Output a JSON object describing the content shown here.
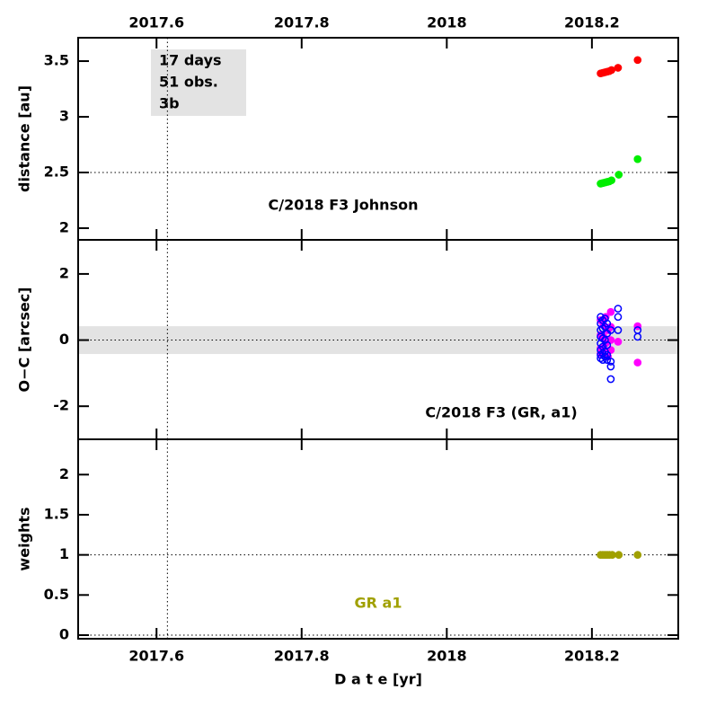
{
  "chart_data": [
    {
      "type": "scatter",
      "ylabel": "distance [au]",
      "label": "C/2018 F3 Johnson",
      "annotations": [
        "17 days",
        "51 obs.",
        "3b"
      ],
      "xlim": [
        2017.492,
        2018.319
      ],
      "xticks": [
        2017.6,
        2017.8,
        2018,
        2018.2
      ],
      "ylim": [
        1.895,
        3.71
      ],
      "yticks": [
        2,
        2.5,
        3,
        3.5
      ],
      "hlines": [
        2.5
      ],
      "vlines": [
        2017.615
      ],
      "series": [
        {
          "color": "#ff0000",
          "marker": "filled",
          "x": [
            2018.212,
            2018.215,
            2018.218,
            2018.221,
            2018.224,
            2018.227,
            2018.236,
            2018.263
          ],
          "values": [
            3.39,
            3.395,
            3.4,
            3.405,
            3.41,
            3.42,
            3.44,
            3.51
          ]
        },
        {
          "color": "#00ee00",
          "marker": "filled",
          "x": [
            2018.212,
            2018.215,
            2018.218,
            2018.221,
            2018.224,
            2018.227,
            2018.237,
            2018.263
          ],
          "values": [
            2.4,
            2.405,
            2.41,
            2.415,
            2.42,
            2.43,
            2.48,
            2.62
          ]
        }
      ]
    },
    {
      "type": "scatter",
      "ylabel": "O−C [arcsec]",
      "label": "C/2018 F3 (GR, a1)",
      "xlim": [
        2017.492,
        2018.319
      ],
      "xticks": [
        2017.6,
        2017.8,
        2018,
        2018.2
      ],
      "ylim": [
        -3,
        3.03
      ],
      "yticks": [
        -2,
        0,
        2
      ],
      "band": [
        -0.42,
        0.42
      ],
      "hlines": [
        0
      ],
      "vlines": [
        2017.615
      ],
      "series": [
        {
          "color": "#ff00ff",
          "marker": "filled",
          "x": [
            2018.212,
            2018.212,
            2018.212,
            2018.212,
            2018.216,
            2018.216,
            2018.216,
            2018.219,
            2018.219,
            2018.222,
            2018.222,
            2018.226,
            2018.226,
            2018.226,
            2018.226,
            2018.236,
            2018.263,
            2018.263
          ],
          "values": [
            0.6,
            0.15,
            -0.25,
            -0.4,
            0.45,
            0.1,
            -0.3,
            0.7,
            -0.1,
            0.3,
            -0.5,
            0.85,
            0.4,
            0.0,
            -0.3,
            -0.05,
            0.42,
            -0.68
          ]
        },
        {
          "color": "#0000ff",
          "marker": "open",
          "x": [
            2018.212,
            2018.212,
            2018.212,
            2018.212,
            2018.212,
            2018.212,
            2018.212,
            2018.212,
            2018.215,
            2018.215,
            2018.215,
            2018.215,
            2018.215,
            2018.215,
            2018.218,
            2018.218,
            2018.218,
            2018.218,
            2018.218,
            2018.221,
            2018.221,
            2018.221,
            2018.221,
            2018.221,
            2018.226,
            2018.226,
            2018.226,
            2018.226,
            2018.236,
            2018.236,
            2018.236,
            2018.263,
            2018.263
          ],
          "values": [
            0.7,
            0.5,
            0.3,
            0.1,
            -0.1,
            -0.3,
            -0.45,
            -0.55,
            0.6,
            0.35,
            0.05,
            -0.2,
            -0.4,
            -0.6,
            0.65,
            0.4,
            0.0,
            -0.35,
            -0.5,
            0.5,
            0.2,
            -0.15,
            -0.45,
            -0.6,
            0.3,
            -0.65,
            -0.8,
            -1.18,
            0.95,
            0.7,
            0.3,
            0.3,
            0.1
          ]
        }
      ]
    },
    {
      "type": "scatter",
      "ylabel": "weights",
      "label": "GR a1",
      "label_color": "#a0a000",
      "xlabel": "D a t e [yr]",
      "xlim": [
        2017.492,
        2018.319
      ],
      "xticks": [
        2017.6,
        2017.8,
        2018,
        2018.2
      ],
      "ylim": [
        -0.045,
        2.44
      ],
      "yticks": [
        0,
        0.5,
        1,
        1.5,
        2
      ],
      "hlines": [
        0,
        1
      ],
      "vlines": [
        2017.615
      ],
      "series": [
        {
          "color": "#a0a000",
          "marker": "filled",
          "x": [
            2018.212,
            2018.215,
            2018.218,
            2018.221,
            2018.224,
            2018.228,
            2018.237,
            2018.263
          ],
          "values": [
            1,
            1,
            1,
            1,
            1,
            1,
            1,
            1
          ]
        }
      ]
    }
  ]
}
